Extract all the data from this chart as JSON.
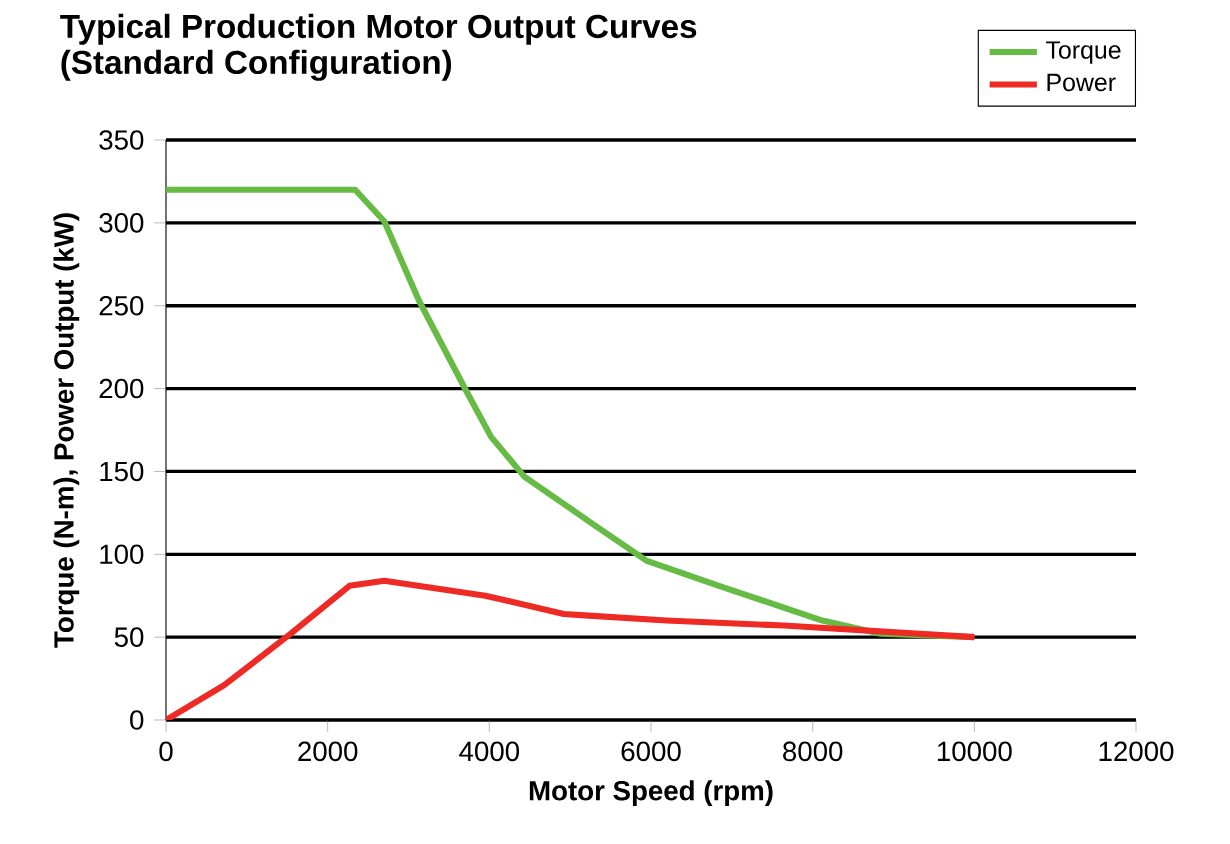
{
  "chart_data": {
    "type": "line",
    "title": "Typical Production Motor Output Curves",
    "subtitle": "(Standard Configuration)",
    "xlabel": "Motor Speed (rpm)",
    "ylabel": "Torque (N-m), Power Output (kW)",
    "xlim": [
      0,
      12000
    ],
    "xticks": [
      0,
      2000,
      4000,
      6000,
      8000,
      10000,
      12000
    ],
    "ylim": [
      0,
      350
    ],
    "yticks": [
      0,
      50,
      100,
      150,
      200,
      250,
      300,
      350
    ],
    "grid": "y",
    "legend": "top right",
    "marker": "none",
    "line_style": "solid",
    "series": [
      {
        "name": "Torque",
        "color": "#66bb44",
        "x": [
          0,
          1000,
          2000,
          2340,
          2700,
          3130,
          3710,
          4020,
          4430,
          5230,
          5950,
          6840,
          8120,
          8840,
          10000
        ],
        "values": [
          320,
          320,
          320,
          320,
          301,
          253,
          199,
          171,
          147,
          120,
          96,
          81,
          60,
          52,
          50
        ]
      },
      {
        "name": "Power",
        "color": "#ee2a24",
        "x": [
          0,
          720,
          1540,
          2270,
          2700,
          3950,
          4920,
          5230,
          6190,
          7640,
          10000
        ],
        "values": [
          0,
          21,
          52,
          81,
          84,
          75,
          64,
          63,
          60,
          57,
          50
        ]
      }
    ]
  }
}
